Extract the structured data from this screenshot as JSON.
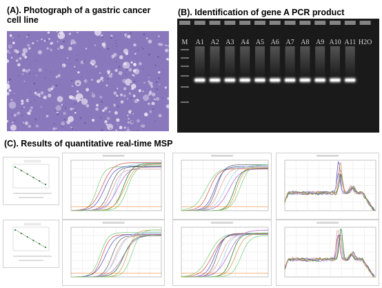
{
  "panel_a": {
    "title": "(A). Photograph of a gastric cancer cell line"
  },
  "panel_b": {
    "title": "(B). Identification of gene A PCR product",
    "lanes": [
      "M",
      "A1",
      "A2",
      "A3",
      "A4",
      "A5",
      "A6",
      "A7",
      "A8",
      "A9",
      "A10",
      "A11",
      "H2O"
    ]
  },
  "panel_c": {
    "title": "(C). Results of quantitative real-time MSP"
  },
  "colors": {
    "gel_background": "#1a1a1a",
    "gel_band": "#f4f4f4",
    "photo_background": "#8a78bc",
    "cell_cluster": "#ece8f5",
    "curve_palette": [
      "#7fd07f",
      "#d65c5c",
      "#5a5ad0",
      "#6a6a6a",
      "#e8a0a0",
      "#9fd0e8",
      "#b36bd6",
      "#2e7d32",
      "#d6a05c"
    ]
  }
}
